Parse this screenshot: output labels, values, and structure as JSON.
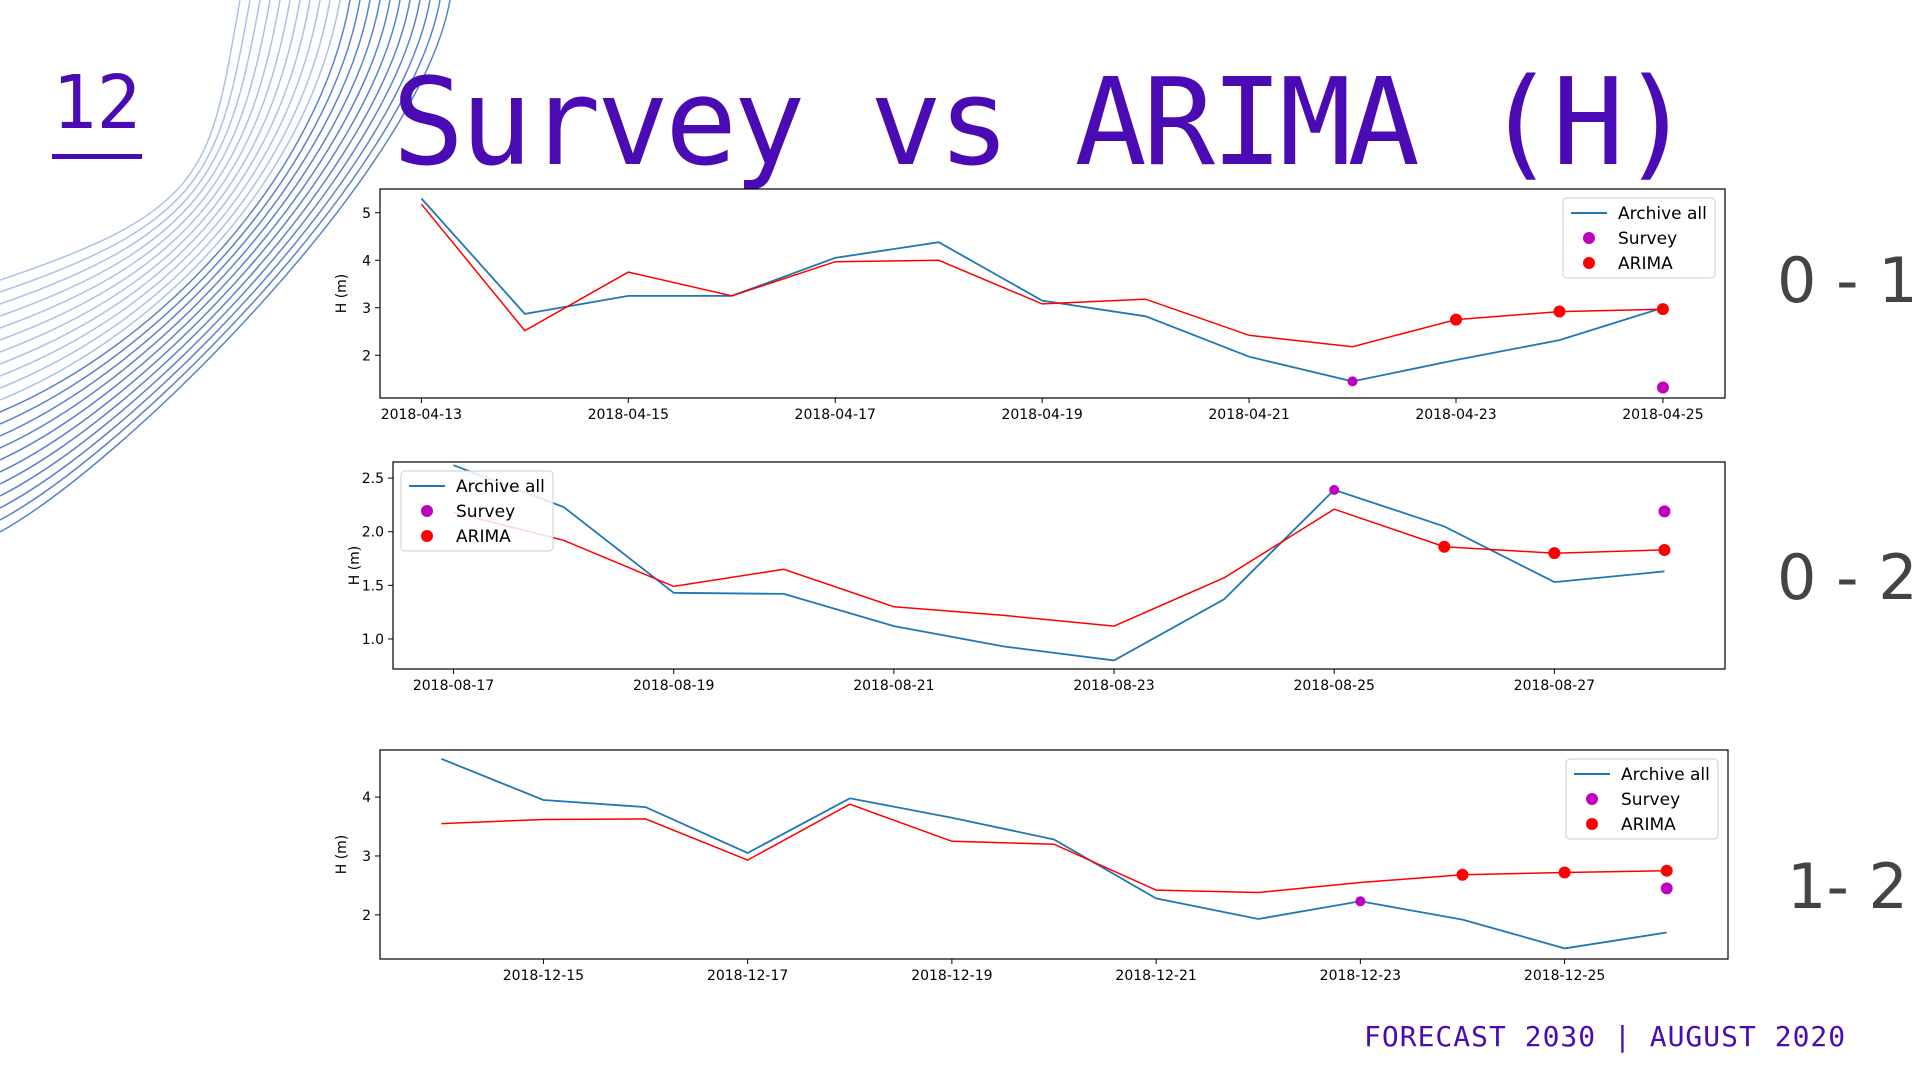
{
  "slide": {
    "number": "12",
    "title": "Survey vs ARIMA (H)",
    "footer": "FORECAST 2030 | AUGUST 2020"
  },
  "colors": {
    "accent": "#4a0bb5",
    "archive": "#1f77b4",
    "survey": "#bf00bf",
    "arima": "#ff0000"
  },
  "side_labels": [
    "0 - 1",
    "0 - 2",
    "1- 2"
  ],
  "chart_data": [
    {
      "type": "line",
      "ylabel": "H (m)",
      "xticks": [
        "2018-04-13",
        "2018-04-15",
        "2018-04-17",
        "2018-04-19",
        "2018-04-21",
        "2018-04-23",
        "2018-04-25"
      ],
      "yticks": [
        "2",
        "3",
        "4",
        "5"
      ],
      "xlim": [
        -0.4,
        12.6
      ],
      "ylim": [
        1.1,
        5.5
      ],
      "legend": {
        "position": "upper right",
        "entries": [
          "Archive all",
          "Survey",
          "ARIMA"
        ]
      },
      "series": [
        {
          "name": "Archive all",
          "style": "line",
          "x": [
            0,
            1,
            2,
            3,
            4,
            5,
            6,
            7,
            8,
            9,
            10,
            11,
            12
          ],
          "y": [
            5.3,
            2.87,
            3.25,
            3.25,
            4.05,
            4.38,
            3.15,
            2.82,
            1.97,
            1.45,
            1.9,
            2.32,
            3.0
          ]
        },
        {
          "name": "ARIMA",
          "style": "line",
          "x": [
            0,
            1,
            2,
            3,
            4,
            5,
            6,
            7,
            8,
            9,
            10,
            11,
            12
          ],
          "y": [
            5.18,
            2.52,
            3.75,
            3.25,
            3.97,
            4.0,
            3.08,
            3.18,
            2.42,
            2.18,
            2.75,
            2.92,
            2.97
          ]
        },
        {
          "name": "ARIMA",
          "style": "points",
          "x": [
            10,
            11,
            12
          ],
          "y": [
            2.75,
            2.92,
            2.97
          ]
        },
        {
          "name": "Survey",
          "style": "points",
          "x": [
            9,
            12
          ],
          "y": [
            1.45,
            1.32
          ]
        }
      ]
    },
    {
      "type": "line",
      "ylabel": "H (m)",
      "xticks": [
        "2018-08-17",
        "2018-08-19",
        "2018-08-21",
        "2018-08-23",
        "2018-08-25",
        "2018-08-27"
      ],
      "yticks": [
        "1.0",
        "1.5",
        "2.0",
        "2.5"
      ],
      "xlim": [
        -0.55,
        11.55
      ],
      "ylim": [
        0.72,
        2.65
      ],
      "legend": {
        "position": "upper left",
        "entries": [
          "Archive all",
          "Survey",
          "ARIMA"
        ]
      },
      "series": [
        {
          "name": "Archive all",
          "style": "line",
          "x": [
            0,
            1,
            2,
            3,
            4,
            5,
            6,
            7,
            8,
            9,
            10,
            11
          ],
          "y": [
            2.62,
            2.23,
            1.43,
            1.42,
            1.12,
            0.93,
            0.8,
            1.37,
            2.39,
            2.05,
            1.53,
            1.63
          ]
        },
        {
          "name": "ARIMA",
          "style": "line",
          "x": [
            0,
            1,
            2,
            3,
            4,
            5,
            6,
            7,
            8,
            9,
            10,
            11
          ],
          "y": [
            2.18,
            1.92,
            1.49,
            1.65,
            1.3,
            1.22,
            1.12,
            1.57,
            2.21,
            1.86,
            1.8,
            1.83
          ]
        },
        {
          "name": "ARIMA",
          "style": "points",
          "x": [
            9,
            10,
            11
          ],
          "y": [
            1.86,
            1.8,
            1.83
          ]
        },
        {
          "name": "Survey",
          "style": "points",
          "x": [
            8,
            11
          ],
          "y": [
            2.39,
            2.19
          ]
        }
      ]
    },
    {
      "type": "line",
      "ylabel": "H (m)",
      "xticks": [
        "2018-12-15",
        "2018-12-17",
        "2018-12-19",
        "2018-12-21",
        "2018-12-23",
        "2018-12-25"
      ],
      "yticks": [
        "2",
        "3",
        "4"
      ],
      "xlim": [
        -0.6,
        12.6
      ],
      "ylim": [
        1.25,
        4.8
      ],
      "legend": {
        "position": "upper right",
        "entries": [
          "Archive all",
          "Survey",
          "ARIMA"
        ]
      },
      "series": [
        {
          "name": "Archive all",
          "style": "line",
          "x": [
            0,
            1,
            2,
            3,
            4,
            5,
            6,
            7,
            8,
            9,
            10,
            11,
            12
          ],
          "y": [
            4.65,
            3.95,
            3.83,
            3.05,
            3.98,
            3.65,
            3.28,
            2.28,
            1.93,
            2.23,
            1.92,
            1.43,
            1.7
          ]
        },
        {
          "name": "ARIMA",
          "style": "line",
          "x": [
            0,
            1,
            2,
            3,
            4,
            5,
            6,
            7,
            8,
            9,
            10,
            11,
            12
          ],
          "y": [
            3.55,
            3.62,
            3.63,
            2.93,
            3.88,
            3.25,
            3.2,
            2.42,
            2.38,
            2.55,
            2.68,
            2.72,
            2.75
          ]
        },
        {
          "name": "ARIMA",
          "style": "points",
          "x": [
            10,
            11,
            12
          ],
          "y": [
            2.68,
            2.72,
            2.75
          ]
        },
        {
          "name": "Survey",
          "style": "points",
          "x": [
            9,
            12
          ],
          "y": [
            2.23,
            2.45
          ]
        }
      ]
    }
  ]
}
